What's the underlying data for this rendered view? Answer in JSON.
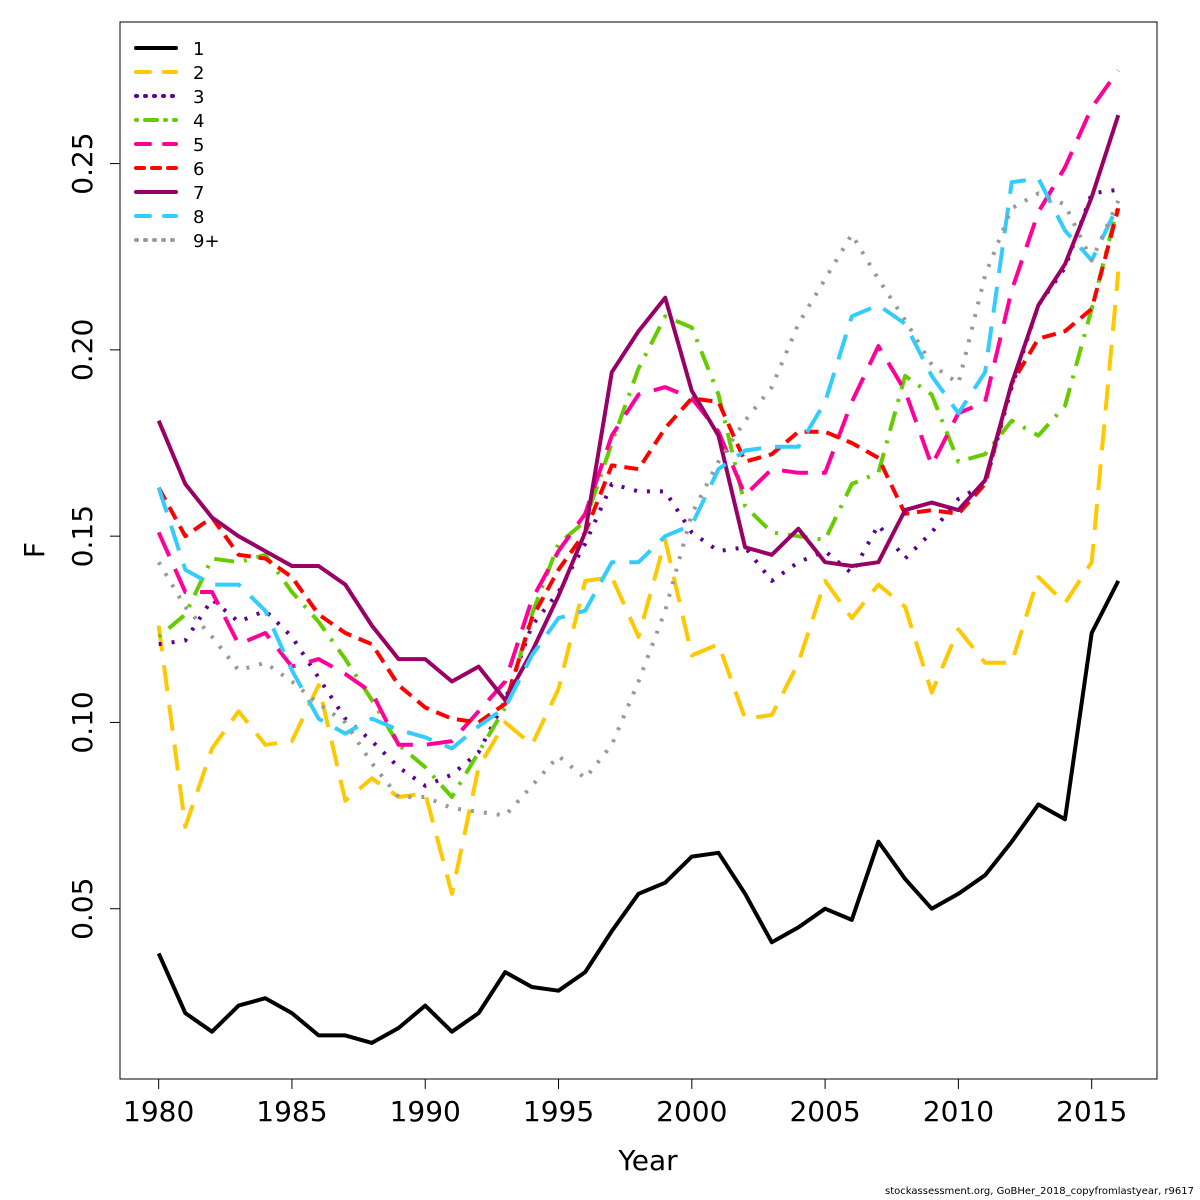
{
  "chart_data": {
    "type": "line",
    "title": "",
    "xlabel": "Year",
    "ylabel": "F",
    "xlim": [
      1978.55,
      2017.45
    ],
    "ylim": [
      0.0043,
      0.288
    ],
    "x_ticks": [
      1980,
      1985,
      1990,
      1995,
      2000,
      2005,
      2010,
      2015
    ],
    "x_tick_labels": [
      "1980",
      "1985",
      "1990",
      "1995",
      "2000",
      "2005",
      "2010",
      "2015"
    ],
    "y_ticks": [
      0.05,
      0.1,
      0.15,
      0.2,
      0.25
    ],
    "y_tick_labels": [
      "0.05",
      "0.10",
      "0.15",
      "0.20",
      "0.25"
    ],
    "grid": false,
    "legend_position": "top-left",
    "x": [
      1980,
      1981,
      1982,
      1983,
      1984,
      1985,
      1986,
      1987,
      1988,
      1989,
      1990,
      1991,
      1992,
      1993,
      1994,
      1995,
      1996,
      1997,
      1998,
      1999,
      2000,
      2001,
      2002,
      2003,
      2004,
      2005,
      2006,
      2007,
      2008,
      2009,
      2010,
      2011,
      2012,
      2013,
      2014,
      2015,
      2016
    ],
    "series": [
      {
        "name": "1",
        "color": "#000000",
        "dash": "solid",
        "values": [
          0.038,
          0.022,
          0.017,
          0.024,
          0.026,
          0.022,
          0.016,
          0.016,
          0.014,
          0.018,
          0.024,
          0.017,
          0.022,
          0.033,
          0.029,
          0.028,
          0.033,
          0.044,
          0.054,
          0.057,
          0.064,
          0.065,
          0.054,
          0.041,
          0.045,
          0.05,
          0.047,
          0.068,
          0.058,
          0.05,
          0.054,
          0.059,
          0.068,
          0.078,
          0.074,
          0.124,
          0.138
        ]
      },
      {
        "name": "2",
        "color": "#FFC800",
        "dash": "long-dash",
        "values": [
          0.126,
          0.072,
          0.093,
          0.103,
          0.094,
          0.095,
          0.11,
          0.079,
          0.085,
          0.08,
          0.081,
          0.054,
          0.088,
          0.1,
          0.094,
          0.109,
          0.138,
          0.139,
          0.123,
          0.149,
          0.118,
          0.121,
          0.101,
          0.102,
          0.116,
          0.138,
          0.128,
          0.137,
          0.131,
          0.108,
          0.125,
          0.116,
          0.116,
          0.139,
          0.132,
          0.143,
          0.221
        ]
      },
      {
        "name": "3",
        "color": "#5E0094",
        "dash": "dotted",
        "values": [
          0.121,
          0.122,
          0.133,
          0.127,
          0.13,
          0.123,
          0.112,
          0.101,
          0.095,
          0.088,
          0.083,
          0.086,
          0.092,
          0.106,
          0.126,
          0.135,
          0.148,
          0.164,
          0.162,
          0.162,
          0.151,
          0.146,
          0.147,
          0.138,
          0.143,
          0.146,
          0.14,
          0.153,
          0.144,
          0.151,
          0.16,
          0.164,
          0.19,
          0.212,
          0.222,
          0.242,
          0.243
        ]
      },
      {
        "name": "4",
        "color": "#66CC00",
        "dash": "dot-dash",
        "values": [
          0.123,
          0.129,
          0.144,
          0.143,
          0.145,
          0.135,
          0.127,
          0.117,
          0.106,
          0.094,
          0.088,
          0.08,
          0.092,
          0.104,
          0.129,
          0.148,
          0.154,
          0.175,
          0.195,
          0.209,
          0.206,
          0.188,
          0.158,
          0.151,
          0.15,
          0.149,
          0.164,
          0.167,
          0.193,
          0.188,
          0.17,
          0.172,
          0.181,
          0.177,
          0.185,
          0.211,
          0.239
        ]
      },
      {
        "name": "5",
        "color": "#FF0099",
        "dash": "long-dash",
        "values": [
          0.151,
          0.135,
          0.135,
          0.121,
          0.124,
          0.115,
          0.117,
          0.113,
          0.108,
          0.094,
          0.094,
          0.095,
          0.103,
          0.111,
          0.133,
          0.146,
          0.156,
          0.177,
          0.188,
          0.19,
          0.187,
          0.178,
          0.161,
          0.168,
          0.167,
          0.167,
          0.186,
          0.201,
          0.189,
          0.169,
          0.183,
          0.186,
          0.216,
          0.237,
          0.249,
          0.265,
          0.275
        ]
      },
      {
        "name": "6",
        "color": "#FF0000",
        "dash": "dashed",
        "values": [
          0.163,
          0.15,
          0.155,
          0.145,
          0.144,
          0.139,
          0.129,
          0.124,
          0.121,
          0.11,
          0.104,
          0.101,
          0.1,
          0.105,
          0.128,
          0.141,
          0.151,
          0.169,
          0.168,
          0.179,
          0.187,
          0.186,
          0.17,
          0.172,
          0.178,
          0.178,
          0.175,
          0.171,
          0.156,
          0.157,
          0.156,
          0.164,
          0.191,
          0.203,
          0.205,
          0.211,
          0.238
        ]
      },
      {
        "name": "7",
        "color": "#990066",
        "dash": "solid",
        "values": [
          0.181,
          0.164,
          0.155,
          0.15,
          0.146,
          0.142,
          0.142,
          0.137,
          0.126,
          0.117,
          0.117,
          0.111,
          0.115,
          0.106,
          0.119,
          0.134,
          0.151,
          0.194,
          0.205,
          0.214,
          0.189,
          0.177,
          0.147,
          0.145,
          0.152,
          0.143,
          0.142,
          0.143,
          0.157,
          0.159,
          0.157,
          0.165,
          0.191,
          0.212,
          0.223,
          0.241,
          0.263
        ]
      },
      {
        "name": "8",
        "color": "#33CCFF",
        "dash": "long-dash",
        "values": [
          0.163,
          0.141,
          0.137,
          0.137,
          0.13,
          0.114,
          0.101,
          0.097,
          0.101,
          0.098,
          0.096,
          0.093,
          0.099,
          0.104,
          0.118,
          0.128,
          0.13,
          0.143,
          0.143,
          0.15,
          0.153,
          0.168,
          0.173,
          0.174,
          0.174,
          0.186,
          0.209,
          0.212,
          0.207,
          0.193,
          0.183,
          0.194,
          0.245,
          0.246,
          0.232,
          0.224,
          0.239
        ]
      },
      {
        "name": "9+",
        "color": "#999999",
        "dash": "dotted",
        "values": [
          0.143,
          0.131,
          0.123,
          0.114,
          0.116,
          0.111,
          0.105,
          0.1,
          0.089,
          0.08,
          0.08,
          0.077,
          0.076,
          0.075,
          0.083,
          0.091,
          0.085,
          0.094,
          0.111,
          0.13,
          0.156,
          0.17,
          0.181,
          0.19,
          0.207,
          0.219,
          0.231,
          0.219,
          0.208,
          0.196,
          0.191,
          0.22,
          0.238,
          0.242,
          0.239,
          0.224,
          0.24
        ]
      }
    ]
  },
  "footer": {
    "credit": "stockassessment.org, GoBHer_2018_copyfromlastyear, r9617"
  }
}
